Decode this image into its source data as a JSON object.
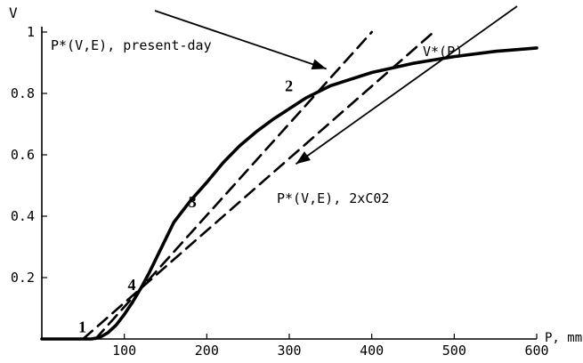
{
  "chart_data": {
    "type": "line",
    "ylabel": "V",
    "xlabel": "P, mm/yr",
    "xlim": [
      0,
      600
    ],
    "ylim": [
      0,
      1
    ],
    "x_ticks": [
      100,
      200,
      300,
      400,
      500,
      600
    ],
    "x_tick_labels": [
      "100",
      "200",
      "300",
      "400",
      "500",
      "600"
    ],
    "y_ticks": [
      0.2,
      0.4,
      0.6,
      0.8,
      1
    ],
    "y_tick_labels": [
      "0.2",
      "0.4",
      "0.6",
      "0.8",
      "1"
    ],
    "grid": false,
    "series": [
      {
        "name": "V*(P)",
        "style": "solid",
        "x": [
          0,
          60,
          70,
          80,
          90,
          100,
          110,
          120,
          130,
          140,
          150,
          160,
          180,
          200,
          220,
          240,
          260,
          280,
          300,
          320,
          350,
          400,
          450,
          500,
          550,
          600
        ],
        "y": [
          0,
          0,
          0.005,
          0.02,
          0.045,
          0.08,
          0.12,
          0.165,
          0.215,
          0.27,
          0.325,
          0.38,
          0.45,
          0.51,
          0.575,
          0.63,
          0.675,
          0.715,
          0.75,
          0.785,
          0.825,
          0.868,
          0.898,
          0.92,
          0.937,
          0.948
        ]
      },
      {
        "name": "P*(V,E), present-day",
        "style": "dashed",
        "x": [
          65,
          400
        ],
        "y": [
          0,
          1
        ]
      },
      {
        "name": "P*(V,E), 2xC02",
        "style": "dashed",
        "x": [
          50,
          475
        ],
        "y": [
          0,
          1
        ]
      }
    ],
    "annotations": [
      {
        "text": "P*(V,E), present-day",
        "arrow_to": [
          345,
          0.88
        ]
      },
      {
        "text": "P*(V,E), 2xC02",
        "arrow_to": [
          308,
          0.57
        ]
      },
      {
        "text": "V*(P)"
      }
    ],
    "intersection_points": [
      {
        "label": "1",
        "x": 55,
        "y": 0.01
      },
      {
        "label": "2",
        "x": 325,
        "y": 0.79
      },
      {
        "label": "3",
        "x": 180,
        "y": 0.4
      },
      {
        "label": "4",
        "x": 130,
        "y": 0.2
      }
    ]
  }
}
